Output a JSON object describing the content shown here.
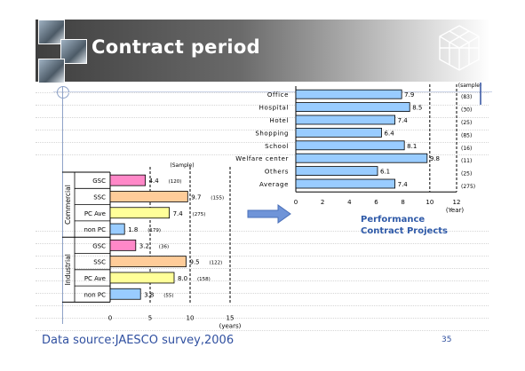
{
  "slide": {
    "title": "Contract period",
    "footer": "Data source:JAESCO survey,2006",
    "page_number": "35",
    "performance_label_line1": "Performance",
    "performance_label_line2": "Contract Projects"
  },
  "chart_data": [
    {
      "type": "bar",
      "orientation": "horizontal",
      "sample_header": "(Sample)",
      "xlabel": "(years)",
      "xlim": [
        0,
        15
      ],
      "xticks": [
        0,
        5,
        10,
        15
      ],
      "groups": [
        {
          "label": "Commercial",
          "rows": [
            0,
            1,
            2,
            3
          ]
        },
        {
          "label": "Industrial",
          "rows": [
            4,
            5,
            6,
            7
          ]
        }
      ],
      "categories": [
        "GSC",
        "SSC",
        "PC Ave",
        "non PC",
        "GSC",
        "SSC",
        "PC Ave",
        "non PC"
      ],
      "values": [
        4.4,
        9.7,
        7.4,
        1.8,
        3.2,
        9.5,
        8.0,
        3.8
      ],
      "value_labels": [
        "4.4",
        "9.7",
        "7.4",
        "1.8",
        "3.2",
        "9.5",
        "8.0",
        "3.8"
      ],
      "samples": [
        "(120)",
        "(155)",
        "(275)",
        "(179)",
        "(36)",
        "(122)",
        "(158)",
        "(55)"
      ],
      "colors": [
        "#ff88c8",
        "#ffcc99",
        "#ffff99",
        "#99ccff",
        "#ff88c8",
        "#ffcc99",
        "#ffff99",
        "#99ccff"
      ]
    },
    {
      "type": "bar",
      "orientation": "horizontal",
      "sample_header": "(sample)",
      "xlabel": "(Year)",
      "xlim": [
        0,
        12
      ],
      "xticks": [
        0,
        2,
        4,
        6,
        8,
        10,
        12
      ],
      "categories": [
        "Office",
        "Hospital",
        "Hotel",
        "Shopping",
        "School",
        "Welfare center",
        "Others",
        "Average"
      ],
      "values": [
        7.9,
        8.5,
        7.4,
        6.4,
        8.1,
        9.8,
        6.1,
        7.4
      ],
      "value_labels": [
        "7.9",
        "8.5",
        "7.4",
        "6.4",
        "8.1",
        "9.8",
        "6.1",
        "7.4"
      ],
      "samples": [
        "(83)",
        "(30)",
        "(25)",
        "(85)",
        "(16)",
        "(11)",
        "(25)",
        "(275)"
      ],
      "color": "#99ccff"
    }
  ]
}
